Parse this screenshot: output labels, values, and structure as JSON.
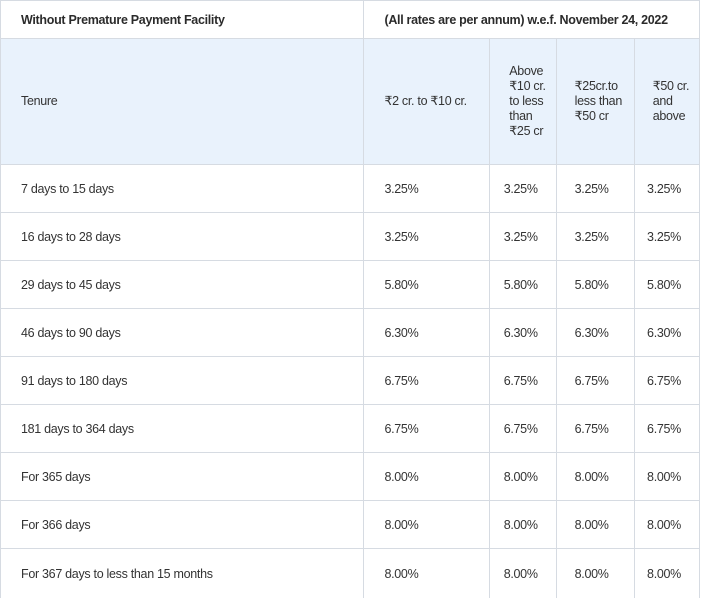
{
  "title_row": {
    "left": "Without Premature Payment Facility",
    "right": "(All rates are per annum) w.e.f. November 24, 2022"
  },
  "headers": [
    "Tenure",
    "₹2 cr. to ₹10 cr.",
    "Above ₹10 cr. to less than ₹25 cr",
    "₹25cr.to less than ₹50 cr",
    "₹50 cr. and above"
  ],
  "rows": [
    {
      "tenure": "7 days to 15 days",
      "values": [
        "3.25%",
        "3.25%",
        "3.25%",
        "3.25%"
      ]
    },
    {
      "tenure": "16 days to 28 days",
      "values": [
        "3.25%",
        "3.25%",
        "3.25%",
        "3.25%"
      ]
    },
    {
      "tenure": "29 days to 45 days",
      "values": [
        "5.80%",
        "5.80%",
        "5.80%",
        "5.80%"
      ]
    },
    {
      "tenure": "46 days to 90 days",
      "values": [
        "6.30%",
        "6.30%",
        "6.30%",
        "6.30%"
      ]
    },
    {
      "tenure": "91 days to 180 days",
      "values": [
        "6.75%",
        "6.75%",
        "6.75%",
        "6.75%"
      ]
    },
    {
      "tenure": "181 days to 364 days",
      "values": [
        "6.75%",
        "6.75%",
        "6.75%",
        "6.75%"
      ]
    },
    {
      "tenure": "For 365 days",
      "values": [
        "8.00%",
        "8.00%",
        "8.00%",
        "8.00%"
      ]
    },
    {
      "tenure": "For 366 days",
      "values": [
        "8.00%",
        "8.00%",
        "8.00%",
        "8.00%"
      ]
    },
    {
      "tenure": "For 367 days to less than 15 months",
      "values": [
        "8.00%",
        "8.00%",
        "8.00%",
        "8.00%"
      ]
    }
  ]
}
